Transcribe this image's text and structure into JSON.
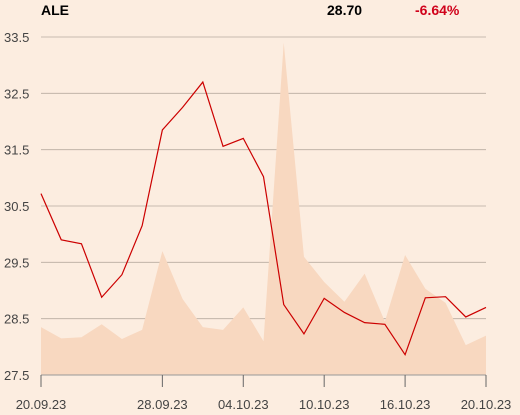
{
  "header": {
    "ticker": "ALE",
    "price": "28.70",
    "change": "-6.64%"
  },
  "colors": {
    "background": "#fcede0",
    "line": "#cc0000",
    "volume_area": "#f8d8c0",
    "grid": "#b8aba0",
    "axis": "#999999"
  },
  "chart_data": {
    "type": "line",
    "title": "",
    "xlabel": "",
    "ylabel": "",
    "ylim": [
      27.5,
      33.5
    ],
    "grid": true,
    "y_ticks": [
      "33.5",
      "32.5",
      "31.5",
      "30.5",
      "29.5",
      "28.5",
      "27.5"
    ],
    "x_ticks": [
      {
        "label": "20.09.23",
        "index": 0
      },
      {
        "label": "28.09.23",
        "index": 6
      },
      {
        "label": "04.10.23",
        "index": 10
      },
      {
        "label": "10.10.23",
        "index": 14
      },
      {
        "label": "16.10.23",
        "index": 18
      },
      {
        "label": "20.10.23",
        "index": 22
      }
    ],
    "series": [
      {
        "values": [
          30.72,
          29.9,
          29.83,
          28.88,
          29.28,
          30.15,
          31.85,
          32.25,
          32.7,
          31.56,
          31.7,
          31.02,
          28.75,
          28.23,
          28.86,
          28.61,
          28.43,
          28.4,
          27.86,
          28.87,
          28.89,
          28.53,
          28.7
        ]
      }
    ],
    "volume_area": {
      "y_values": [
        28.35,
        28.15,
        28.17,
        28.4,
        28.14,
        28.3,
        29.7,
        28.85,
        28.35,
        28.3,
        28.7,
        28.1,
        33.4,
        29.6,
        29.15,
        28.8,
        29.3,
        28.45,
        29.63,
        29.03,
        28.78,
        28.03,
        28.2
      ]
    }
  }
}
